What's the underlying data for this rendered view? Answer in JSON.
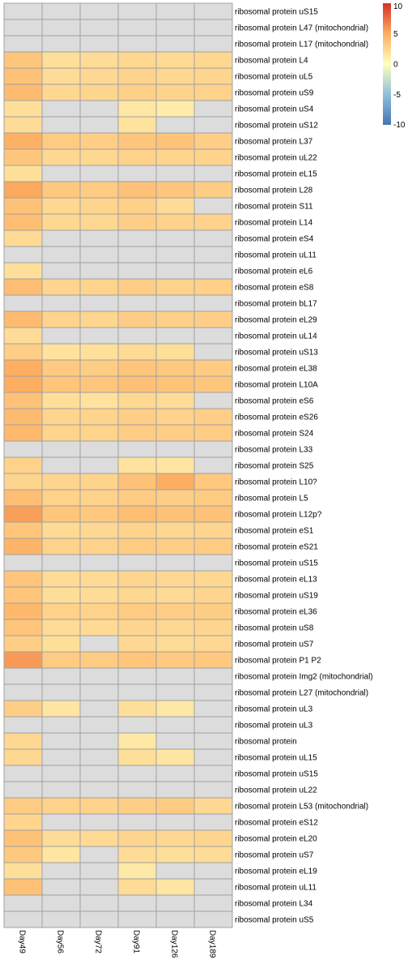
{
  "chart_data": {
    "type": "heatmap",
    "columns": [
      "Day49",
      "Day56",
      "Day72",
      "Day91",
      "Day126",
      "Day189"
    ],
    "rows": [
      "ribosomal protein uS15",
      "ribosomal protein L47 (mitochondrial)",
      "ribosomal protein L17 (mitochondrial)",
      "ribosomal protein L4",
      "ribosomal protein uL5",
      "ribosomal protein uS9",
      "ribosomal protein uS4",
      "ribosomal protein uS12",
      "ribosomal protein L37",
      "ribosomal protein uL22",
      "ribosomal protein eL15",
      "ribosomal protein L28",
      "ribosomal protein S11",
      "ribosomal protein L14",
      "ribosomal protein eS4",
      "ribosomal protein uL11",
      "ribosomal protein eL6",
      "ribosomal protein eS8",
      "ribosomal protein bL17",
      "ribosomal protein eL29",
      "ribosomal protein uL14",
      "ribosomal protein uS13",
      "ribosomal protein eL38",
      "ribosomal protein L10A",
      "ribosomal protein eS6",
      "ribosomal protein eS26",
      "ribosomal protein S24",
      "ribosomal protein L33",
      "ribosomal protein S25",
      "ribosomal protein L10?",
      "ribosomal protein L5",
      "ribosomal protein L12p?",
      "ribosomal protein eS1",
      "ribosomal protein eS21",
      "ribosomal protein uS15",
      "ribosomal protein eL13",
      "ribosomal protein uS19",
      "ribosomal protein eL36",
      "ribosomal protein uS8",
      "ribosomal protein uS7",
      "ribosomal protein P1 P2",
      "ribosomal protein Img2 (mitochondrial)",
      "ribosomal protein L27 (mitochondrial)",
      "ribosomal protein uL3",
      "ribosomal protein uL3",
      "ribosomal protein",
      "ribosomal protein uL15",
      "ribosomal protein uS15",
      "ribosomal protein uL22",
      "ribosomal protein L53 (mitochondrial)",
      "ribosomal protein eS12",
      "ribosomal protein eL20",
      "ribosomal protein uS7",
      "ribosomal protein eL19",
      "ribosomal protein uL11",
      "ribosomal protein L34",
      "ribosomal protein uS5"
    ],
    "values": [
      [
        null,
        null,
        null,
        null,
        null,
        null
      ],
      [
        null,
        null,
        null,
        null,
        null,
        null
      ],
      [
        null,
        null,
        null,
        null,
        null,
        null
      ],
      [
        3.5,
        2.0,
        2.2,
        2.5,
        2.3,
        2.5
      ],
      [
        3.8,
        2.2,
        2.4,
        2.7,
        2.5,
        2.6
      ],
      [
        4.2,
        2.4,
        2.6,
        2.9,
        2.7,
        2.8
      ],
      [
        2.0,
        null,
        null,
        1.5,
        1.2,
        null
      ],
      [
        2.2,
        null,
        null,
        1.8,
        null,
        null
      ],
      [
        4.8,
        3.2,
        3.0,
        3.5,
        3.7,
        3.0
      ],
      [
        3.5,
        2.4,
        2.5,
        2.8,
        2.6,
        2.7
      ],
      [
        2.0,
        null,
        null,
        null,
        null,
        null
      ],
      [
        5.2,
        3.4,
        3.2,
        3.8,
        3.5,
        3.1
      ],
      [
        3.8,
        2.5,
        2.6,
        2.9,
        2.2,
        null
      ],
      [
        4.0,
        2.4,
        2.5,
        3.0,
        2.8,
        2.8
      ],
      [
        2.3,
        null,
        null,
        null,
        null,
        null
      ],
      [
        null,
        null,
        null,
        null,
        null,
        null
      ],
      [
        2.0,
        null,
        null,
        null,
        null,
        null
      ],
      [
        4.0,
        2.6,
        2.7,
        3.0,
        2.8,
        2.9
      ],
      [
        null,
        null,
        null,
        null,
        null,
        null
      ],
      [
        4.2,
        2.7,
        2.6,
        3.1,
        2.9,
        3.0
      ],
      [
        2.2,
        null,
        null,
        null,
        null,
        null
      ],
      [
        3.0,
        1.8,
        1.9,
        2.3,
        2.0,
        null
      ],
      [
        5.0,
        3.3,
        3.1,
        3.6,
        3.4,
        3.2
      ],
      [
        5.0,
        3.6,
        3.5,
        3.9,
        3.7,
        3.5
      ],
      [
        3.8,
        2.0,
        1.8,
        2.4,
        2.2,
        null
      ],
      [
        4.2,
        2.6,
        2.7,
        3.0,
        2.8,
        3.0
      ],
      [
        4.4,
        2.7,
        2.7,
        3.1,
        3.0,
        3.1
      ],
      [
        null,
        null,
        null,
        null,
        null,
        null
      ],
      [
        2.8,
        null,
        null,
        1.8,
        1.6,
        null
      ],
      [
        2.6,
        2.6,
        2.7,
        3.8,
        5.0,
        3.4
      ],
      [
        4.0,
        2.8,
        2.8,
        3.2,
        3.0,
        3.2
      ],
      [
        5.6,
        3.6,
        3.4,
        4.0,
        3.8,
        3.8
      ],
      [
        3.6,
        2.3,
        2.4,
        2.7,
        2.5,
        2.6
      ],
      [
        4.6,
        2.8,
        2.8,
        3.2,
        3.0,
        3.2
      ],
      [
        null,
        null,
        null,
        null,
        null,
        null
      ],
      [
        3.6,
        2.2,
        2.3,
        2.6,
        2.4,
        2.5
      ],
      [
        3.6,
        2.1,
        2.2,
        2.5,
        2.3,
        2.6
      ],
      [
        4.4,
        2.8,
        2.8,
        3.2,
        3.0,
        3.1
      ],
      [
        3.6,
        2.2,
        2.3,
        2.6,
        2.4,
        2.6
      ],
      [
        3.0,
        2.0,
        null,
        2.4,
        2.2,
        2.4
      ],
      [
        5.8,
        3.2,
        3.2,
        3.6,
        3.3,
        3.4
      ],
      [
        null,
        null,
        null,
        null,
        null,
        null
      ],
      [
        null,
        null,
        null,
        null,
        null,
        null
      ],
      [
        3.0,
        1.6,
        null,
        2.0,
        1.4,
        null
      ],
      [
        null,
        null,
        null,
        null,
        null,
        null
      ],
      [
        2.4,
        null,
        null,
        1.4,
        null,
        null
      ],
      [
        2.4,
        null,
        null,
        2.0,
        1.6,
        null
      ],
      [
        null,
        null,
        null,
        null,
        null,
        null
      ],
      [
        null,
        null,
        null,
        null,
        null,
        null
      ],
      [
        3.2,
        2.8,
        2.8,
        3.0,
        3.2,
        2.4
      ],
      [
        2.6,
        null,
        null,
        null,
        null,
        null
      ],
      [
        3.8,
        2.2,
        2.3,
        2.6,
        2.4,
        2.6
      ],
      [
        3.4,
        1.6,
        null,
        2.2,
        2.0,
        2.2
      ],
      [
        2.0,
        null,
        null,
        1.4,
        null,
        null
      ],
      [
        3.8,
        null,
        null,
        2.2,
        1.6,
        null
      ],
      [
        null,
        null,
        null,
        null,
        null,
        null
      ],
      [
        null,
        null,
        null,
        null,
        null,
        null
      ]
    ],
    "missing_color": "#DCDCDC",
    "legend": {
      "placement": "top-right",
      "ticks": [
        10,
        5,
        0,
        -5,
        -10
      ],
      "range": [
        -10,
        10
      ],
      "colors": {
        "low": "#4575B4",
        "mid_low": "#91BFDB",
        "mid": "#FFFFBF",
        "mid_high": "#FDAE61",
        "high": "#D73027"
      }
    }
  }
}
